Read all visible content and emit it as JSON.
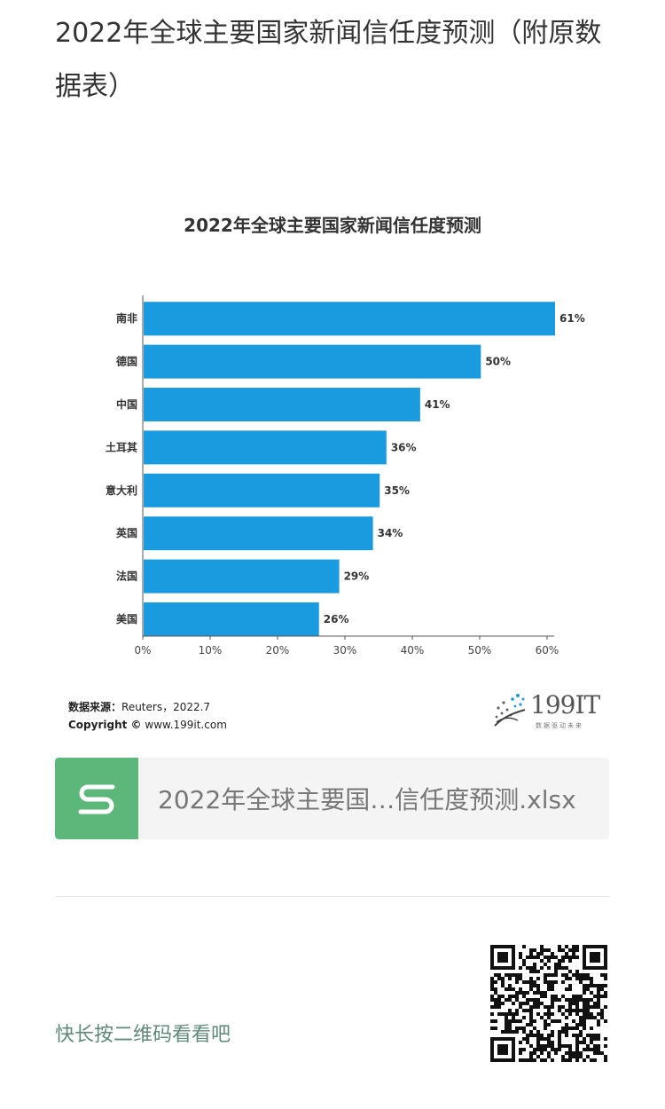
{
  "page": {
    "title": "2022年全球主要国家新闻信任度预测（附原数据表）"
  },
  "chart_data": {
    "type": "bar",
    "orientation": "horizontal",
    "title": "2022年全球主要国家新闻信任度预测",
    "categories": [
      "南非",
      "德国",
      "中国",
      "土耳其",
      "意大利",
      "英国",
      "法国",
      "美国"
    ],
    "values": [
      61,
      50,
      41,
      36,
      35,
      34,
      29,
      26
    ],
    "value_labels": [
      "61%",
      "50%",
      "41%",
      "36%",
      "35%",
      "34%",
      "29%",
      "26%"
    ],
    "xticks": [
      "0%",
      "10%",
      "20%",
      "30%",
      "40%",
      "50%",
      "60%"
    ],
    "xlim": [
      0,
      61
    ],
    "grid": false,
    "bar_color": "#1a9be0",
    "source_label": "数据来源：",
    "source_value": "Reuters，2022.7",
    "copyright_label": "Copyright ©",
    "copyright_value": "www.199it.com"
  },
  "brand": {
    "name": "199IT",
    "tagline": "数据驱动未来"
  },
  "attachment": {
    "file_name": "2022年全球主要国…信任度预测.xlsx",
    "icon": "spreadsheet-s-icon",
    "icon_color": "#5cb87a"
  },
  "footer": {
    "qr_hint": "快长按二维码看看吧",
    "qr_icon": "qr-code-icon"
  }
}
